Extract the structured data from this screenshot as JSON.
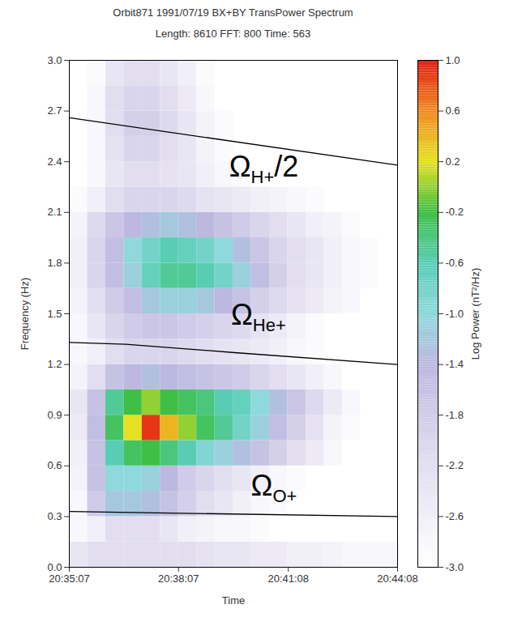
{
  "chart_data": {
    "type": "heatmap",
    "title": "Orbit871 1991/07/19 BX+BY TransPower Spectrum",
    "subtitle": "Length: 8610  FFT: 800  Time: 563",
    "x_label": "Time",
    "y_label": "Frequency (Hz)",
    "grid": false,
    "xlim": [
      "20:35:07",
      "20:44:08"
    ],
    "xticks": [
      "20:35:07",
      "20:38:07",
      "20:41:08",
      "20:44:08"
    ],
    "ylim": [
      0,
      3
    ],
    "yticks": [
      {
        "value": 0,
        "label": "0.0"
      },
      0.3,
      0.6,
      0.9,
      1.2,
      1.5,
      1.8,
      2.1,
      2.4,
      2.7,
      {
        "value": 3,
        "label": "3.0"
      }
    ],
    "cells": {
      "x_edges": [
        "20:35:07",
        "20:35:37",
        "20:36:07",
        "20:36:37",
        "20:37:07",
        "20:37:37",
        "20:38:07",
        "20:38:37",
        "20:39:07",
        "20:39:37",
        "20:40:07",
        "20:40:37",
        "20:41:07",
        "20:41:37",
        "20:42:07",
        "20:42:37",
        "20:43:07",
        "20:43:37",
        "20:44:08"
      ],
      "y_edges": [
        0,
        0.15,
        0.3,
        0.45,
        0.6,
        0.75,
        0.9,
        1.05,
        1.2,
        1.35,
        1.5,
        1.65,
        1.8,
        1.95,
        2.1,
        2.25,
        2.4,
        2.55,
        2.7,
        2.85,
        3.0
      ],
      "values": [
        [
          -2.4,
          -2.2,
          -2.2,
          -2.2,
          -2.2,
          -2.2,
          -2.2,
          -2.3,
          -2.4,
          -2.4,
          -2.5,
          -2.5,
          -2.6,
          -2.6,
          -2.7,
          -2.8,
          -2.8,
          -2.8
        ],
        [
          -2.8,
          -2.6,
          -2.2,
          -2.2,
          -2.2,
          -2.4,
          -2.6,
          -2.7,
          -2.8,
          -2.8,
          -2.9,
          -3,
          -3,
          -3,
          -3,
          -3,
          -3,
          -3
        ],
        [
          -2.8,
          -1.8,
          -1.2,
          -1.2,
          -1.3,
          -1.6,
          -1.9,
          -2.2,
          -2.4,
          -2.6,
          -2.8,
          -2.9,
          -3,
          -3,
          -3,
          -3,
          -3,
          -3
        ],
        [
          -2.7,
          -1.6,
          -1.0,
          -1.0,
          -1.1,
          -1.4,
          -1.8,
          -2.0,
          -2.2,
          -2.4,
          -2.6,
          -2.8,
          -2.9,
          -3,
          -3,
          -3,
          -3,
          -3
        ],
        [
          -2.6,
          -1.6,
          -0.6,
          -0.3,
          -0.2,
          -0.4,
          -0.6,
          -0.9,
          -1.1,
          -1.3,
          -1.6,
          -1.9,
          -2.2,
          -2.5,
          -2.8,
          -3,
          -3,
          -3
        ],
        [
          -2.5,
          -1.5,
          -0.3,
          0.2,
          0.9,
          0.4,
          0.0,
          -0.3,
          -0.5,
          -0.8,
          -1.1,
          -1.5,
          -1.9,
          -2.3,
          -2.7,
          -2.9,
          -3,
          -3
        ],
        [
          -2.4,
          -1.6,
          -0.5,
          -0.2,
          0.0,
          -0.2,
          -0.3,
          -0.4,
          -0.6,
          -0.7,
          -1.0,
          -1.3,
          -1.7,
          -2.1,
          -2.5,
          -2.8,
          -3,
          -3
        ],
        [
          -2.7,
          -2.2,
          -1.6,
          -1.4,
          -1.3,
          -1.4,
          -1.5,
          -1.6,
          -1.7,
          -1.8,
          -2.0,
          -2.2,
          -2.4,
          -2.6,
          -2.8,
          -3,
          -3,
          -3
        ],
        [
          -2.8,
          -2.6,
          -2.2,
          -2.0,
          -2.0,
          -2.0,
          -2.1,
          -2.2,
          -2.3,
          -2.4,
          -2.5,
          -2.6,
          -2.8,
          -2.9,
          -3,
          -3,
          -3,
          -3
        ],
        [
          -2.8,
          -2.4,
          -2.0,
          -1.8,
          -1.7,
          -1.7,
          -1.8,
          -1.9,
          -2.0,
          -2.1,
          -2.3,
          -2.5,
          -2.7,
          -2.9,
          -3,
          -3,
          -3,
          -3
        ],
        [
          -2.7,
          -2.2,
          -1.8,
          -1.5,
          -1.2,
          -1.1,
          -1.1,
          -1.2,
          -1.4,
          -1.6,
          -1.9,
          -2.1,
          -2.3,
          -2.5,
          -2.7,
          -2.8,
          -3,
          -3
        ],
        [
          -2.6,
          -2.0,
          -1.5,
          -1.1,
          -0.7,
          -0.5,
          -0.5,
          -0.6,
          -0.8,
          -1.1,
          -1.5,
          -1.9,
          -2.2,
          -2.4,
          -2.6,
          -2.8,
          -2.9,
          -3
        ],
        [
          -2.6,
          -2.0,
          -1.5,
          -1.0,
          -0.8,
          -0.6,
          -0.7,
          -0.8,
          -1.0,
          -1.3,
          -1.7,
          -2.0,
          -2.2,
          -2.4,
          -2.6,
          -2.8,
          -2.9,
          -3
        ],
        [
          -2.7,
          -2.1,
          -1.7,
          -1.4,
          -1.3,
          -1.2,
          -1.3,
          -1.4,
          -1.6,
          -1.8,
          -2.0,
          -2.2,
          -2.4,
          -2.6,
          -2.7,
          -2.9,
          -3,
          -3
        ],
        [
          -2.9,
          -2.6,
          -2.2,
          -2.0,
          -2.0,
          -2.0,
          -2.1,
          -2.3,
          -2.4,
          -2.5,
          -2.6,
          -2.7,
          -2.8,
          -2.9,
          -3,
          -3,
          -3,
          -3
        ],
        [
          -3,
          -2.8,
          -2.4,
          -2.2,
          -2.2,
          -2.3,
          -2.4,
          -2.6,
          -2.8,
          -2.9,
          -3,
          -3,
          -3,
          -3,
          -3,
          -3,
          -3,
          -3
        ],
        [
          -3,
          -2.8,
          -2.3,
          -2.0,
          -2.0,
          -2.2,
          -2.4,
          -2.7,
          -2.9,
          -3,
          -3,
          -3,
          -3,
          -3,
          -3,
          -3,
          -3,
          -3
        ],
        [
          -3,
          -2.8,
          -2.2,
          -1.9,
          -1.9,
          -2.1,
          -2.4,
          -2.7,
          -2.9,
          -3,
          -3,
          -3,
          -3,
          -3,
          -3,
          -3,
          -3,
          -3
        ],
        [
          -3,
          -2.8,
          -2.2,
          -2.0,
          -2.0,
          -2.2,
          -2.5,
          -2.8,
          -3,
          -3,
          -3,
          -3,
          -3,
          -3,
          -3,
          -3,
          -3,
          -3
        ],
        [
          -3,
          -2.9,
          -2.4,
          -2.2,
          -2.2,
          -2.4,
          -2.6,
          -2.9,
          -3,
          -3,
          -3,
          -3,
          -3,
          -3,
          -3,
          -3,
          -3,
          -3
        ]
      ]
    },
    "colorbar": {
      "label": "Log Power (nT²/Hz)",
      "lim": [
        -3,
        1
      ],
      "ticks": [
        {
          "value": 1,
          "label": "1.0"
        },
        0.6,
        0.2,
        -0.2,
        -0.6,
        {
          "value": -1,
          "label": "-1.0"
        },
        -1.4,
        -1.8,
        -2.2,
        -2.6,
        {
          "value": -3,
          "label": "-3.0"
        }
      ]
    },
    "series": [
      {
        "type": "line",
        "color": "#000000",
        "x": [
          "20:35:07",
          "20:44:08"
        ],
        "values": [
          2.66,
          2.38
        ]
      },
      {
        "type": "line",
        "color": "#000000",
        "x": [
          "20:35:07",
          "20:36:40",
          "20:39:40",
          "20:44:08"
        ],
        "values": [
          1.33,
          1.32,
          1.27,
          1.2
        ]
      },
      {
        "type": "line",
        "color": "#000000",
        "x": [
          "20:35:07",
          "20:44:08"
        ],
        "values": [
          0.33,
          0.3
        ]
      }
    ],
    "annotations": [
      {
        "text": "Ω",
        "subscript": "H+",
        "suffix": "/2",
        "x": "20:39:31",
        "y": 2.36
      },
      {
        "text": "Ω",
        "subscript": "He+",
        "suffix": "",
        "x": "20:39:34",
        "y": 1.48
      },
      {
        "text": "Ω",
        "subscript": "O+",
        "suffix": "",
        "x": "20:40:07",
        "y": 0.47
      }
    ]
  }
}
